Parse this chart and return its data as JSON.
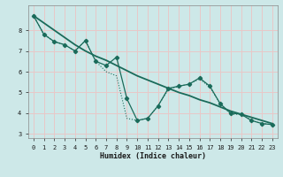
{
  "title": "",
  "xlabel": "Humidex (Indice chaleur)",
  "bg_color": "#cde8e8",
  "grid_color": "#e8c8c8",
  "line_color": "#1a6b5a",
  "xlim": [
    -0.5,
    23.5
  ],
  "ylim": [
    2.8,
    9.2
  ],
  "xticks": [
    0,
    1,
    2,
    3,
    4,
    5,
    6,
    7,
    8,
    9,
    10,
    11,
    12,
    13,
    14,
    15,
    16,
    17,
    18,
    19,
    20,
    21,
    22,
    23
  ],
  "yticks": [
    3,
    4,
    5,
    6,
    7,
    8
  ],
  "line1_x": [
    0,
    1,
    2,
    3,
    4,
    5,
    6,
    7,
    8,
    9,
    10,
    11,
    12,
    13,
    14,
    15,
    16,
    17,
    18,
    19,
    20,
    21,
    22,
    23
  ],
  "line1_y": [
    8.7,
    7.8,
    7.45,
    7.3,
    7.0,
    7.5,
    6.5,
    6.3,
    6.7,
    4.7,
    3.65,
    3.75,
    4.35,
    5.2,
    5.3,
    5.4,
    5.7,
    5.3,
    4.45,
    4.0,
    3.95,
    3.65,
    3.5,
    3.45
  ],
  "line2_x": [
    0,
    1,
    2,
    3,
    4,
    5,
    6,
    7,
    8,
    9,
    10,
    11,
    12,
    13,
    14,
    15,
    16,
    17,
    18,
    19,
    20,
    21,
    22,
    23
  ],
  "line2_y": [
    8.7,
    8.35,
    8.0,
    7.65,
    7.3,
    7.0,
    6.75,
    6.55,
    6.3,
    6.05,
    5.8,
    5.6,
    5.4,
    5.2,
    5.0,
    4.85,
    4.65,
    4.5,
    4.3,
    4.1,
    3.95,
    3.8,
    3.65,
    3.5
  ],
  "line3_x": [
    0,
    1,
    2,
    3,
    4,
    5,
    6,
    7,
    8,
    9,
    10,
    11,
    12,
    13,
    14,
    15,
    16,
    17,
    18,
    19,
    20,
    21,
    22,
    23
  ],
  "line3_y": [
    8.7,
    7.8,
    7.45,
    7.3,
    7.0,
    7.5,
    6.5,
    6.0,
    5.8,
    3.75,
    3.65,
    3.75,
    4.35,
    5.15,
    5.3,
    5.4,
    5.65,
    5.25,
    4.45,
    3.95,
    3.95,
    3.65,
    3.5,
    3.45
  ]
}
